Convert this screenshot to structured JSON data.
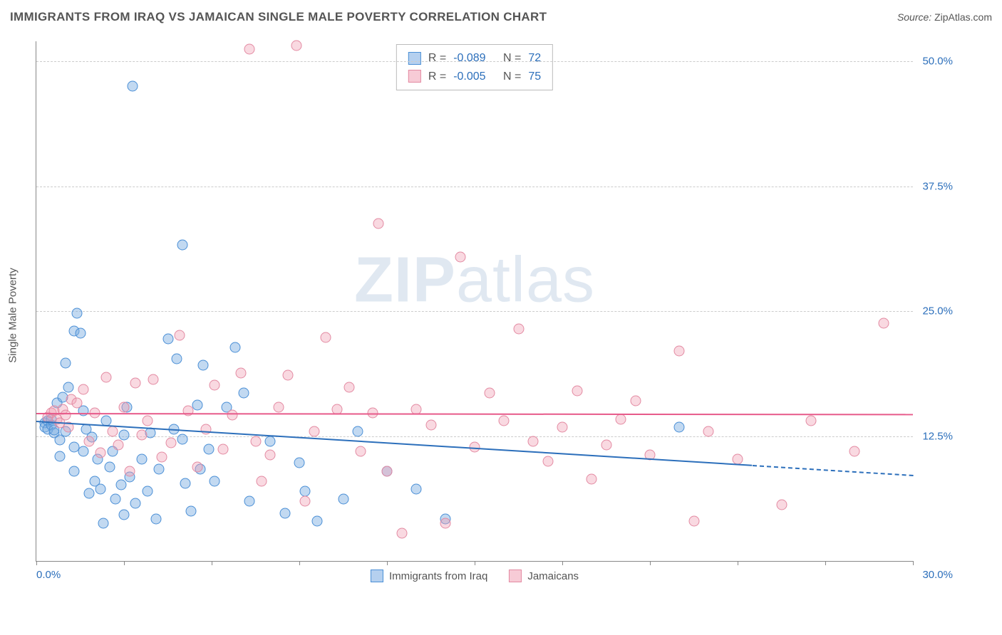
{
  "title": "IMMIGRANTS FROM IRAQ VS JAMAICAN SINGLE MALE POVERTY CORRELATION CHART",
  "source_label": "Source:",
  "source_value": "ZipAtlas.com",
  "watermark_zip": "ZIP",
  "watermark_atlas": "atlas",
  "ylabel": "Single Male Poverty",
  "chart": {
    "type": "scatter",
    "background_color": "#ffffff",
    "grid_color": "#cccccc",
    "axis_color": "#888888",
    "xlim": [
      0,
      30
    ],
    "ylim": [
      0,
      52
    ],
    "xtick_positions": [
      0,
      3,
      6,
      9,
      12,
      15,
      18,
      21,
      24,
      27,
      30
    ],
    "ytick_positions": [
      12.5,
      25.0,
      37.5,
      50.0
    ],
    "ytick_labels": [
      "12.5%",
      "25.0%",
      "37.5%",
      "50.0%"
    ],
    "xaxis_min_label": "0.0%",
    "xaxis_max_label": "30.0%",
    "tick_label_color": "#2c6fbb",
    "label_fontsize": 15,
    "title_fontsize": 17,
    "point_radius": 7.5
  },
  "stats": {
    "series1": {
      "r_label": "R =",
      "r_value": "-0.089",
      "n_label": "N =",
      "n_value": "72"
    },
    "series2": {
      "r_label": "R =",
      "r_value": "-0.005",
      "n_label": "N =",
      "n_value": "75"
    }
  },
  "legend": {
    "series1": "Immigrants from Iraq",
    "series2": "Jamaicans"
  },
  "series": [
    {
      "name": "Immigrants from Iraq",
      "color_fill": "rgba(120,170,225,0.45)",
      "color_stroke": "#4a8fd6",
      "regression": {
        "x1": 0,
        "y1": 14.0,
        "x2": 24.5,
        "y2": 9.6,
        "dashed_extend_x": 30,
        "dashed_extend_y": 8.6,
        "color": "#2c6fbb",
        "width": 2.5
      },
      "points": [
        [
          0.3,
          13.8
        ],
        [
          0.3,
          13.4
        ],
        [
          0.4,
          14.0
        ],
        [
          0.4,
          13.2
        ],
        [
          0.5,
          13.6
        ],
        [
          0.5,
          14.2
        ],
        [
          0.6,
          12.8
        ],
        [
          0.6,
          13.1
        ],
        [
          0.7,
          15.8
        ],
        [
          0.8,
          12.1
        ],
        [
          0.8,
          10.5
        ],
        [
          0.9,
          16.4
        ],
        [
          1.0,
          13.0
        ],
        [
          1.0,
          19.8
        ],
        [
          1.1,
          17.4
        ],
        [
          1.3,
          9.0
        ],
        [
          1.3,
          11.4
        ],
        [
          1.3,
          23.0
        ],
        [
          1.4,
          24.8
        ],
        [
          1.5,
          22.8
        ],
        [
          1.6,
          15.0
        ],
        [
          1.6,
          11.0
        ],
        [
          1.7,
          13.2
        ],
        [
          1.8,
          6.8
        ],
        [
          1.9,
          12.4
        ],
        [
          2.0,
          8.0
        ],
        [
          2.1,
          10.2
        ],
        [
          2.2,
          7.2
        ],
        [
          2.3,
          3.8
        ],
        [
          2.4,
          14.0
        ],
        [
          2.5,
          9.4
        ],
        [
          2.6,
          11.0
        ],
        [
          2.7,
          6.2
        ],
        [
          2.9,
          7.6
        ],
        [
          3.0,
          4.6
        ],
        [
          3.0,
          12.6
        ],
        [
          3.1,
          15.4
        ],
        [
          3.2,
          8.4
        ],
        [
          3.3,
          47.5
        ],
        [
          3.4,
          5.8
        ],
        [
          3.6,
          10.2
        ],
        [
          3.8,
          7.0
        ],
        [
          3.9,
          12.8
        ],
        [
          4.1,
          4.2
        ],
        [
          4.2,
          9.2
        ],
        [
          4.5,
          22.2
        ],
        [
          4.7,
          13.2
        ],
        [
          4.8,
          20.2
        ],
        [
          5.0,
          31.6
        ],
        [
          5.0,
          12.2
        ],
        [
          5.1,
          7.8
        ],
        [
          5.3,
          5.0
        ],
        [
          5.5,
          15.6
        ],
        [
          5.6,
          9.2
        ],
        [
          5.7,
          19.6
        ],
        [
          5.9,
          11.2
        ],
        [
          6.1,
          8.0
        ],
        [
          6.5,
          15.4
        ],
        [
          6.8,
          21.4
        ],
        [
          7.1,
          16.8
        ],
        [
          7.3,
          6.0
        ],
        [
          8.0,
          12.0
        ],
        [
          8.5,
          4.8
        ],
        [
          9.0,
          9.8
        ],
        [
          9.2,
          7.0
        ],
        [
          9.6,
          4.0
        ],
        [
          10.5,
          6.2
        ],
        [
          11.0,
          13.0
        ],
        [
          12.0,
          9.0
        ],
        [
          13.0,
          7.2
        ],
        [
          14.0,
          4.2
        ],
        [
          22.0,
          13.4
        ]
      ]
    },
    {
      "name": "Jamaicans",
      "color_fill": "rgba(240,160,180,0.40)",
      "color_stroke": "#e38aa2",
      "regression": {
        "x1": 0,
        "y1": 14.8,
        "x2": 30,
        "y2": 14.7,
        "color": "#e75a8a",
        "width": 2.5
      },
      "points": [
        [
          0.4,
          14.4
        ],
        [
          0.5,
          14.8
        ],
        [
          0.6,
          15.0
        ],
        [
          0.7,
          14.2
        ],
        [
          0.8,
          13.8
        ],
        [
          0.9,
          15.2
        ],
        [
          1.0,
          14.6
        ],
        [
          1.1,
          13.4
        ],
        [
          1.2,
          16.2
        ],
        [
          1.4,
          15.8
        ],
        [
          1.6,
          17.2
        ],
        [
          1.8,
          12.0
        ],
        [
          2.0,
          14.8
        ],
        [
          2.2,
          10.8
        ],
        [
          2.4,
          18.4
        ],
        [
          2.6,
          13.0
        ],
        [
          2.8,
          11.6
        ],
        [
          3.0,
          15.4
        ],
        [
          3.2,
          9.0
        ],
        [
          3.4,
          17.8
        ],
        [
          3.6,
          12.6
        ],
        [
          3.8,
          14.0
        ],
        [
          4.0,
          18.2
        ],
        [
          4.3,
          10.4
        ],
        [
          4.6,
          11.8
        ],
        [
          4.9,
          22.6
        ],
        [
          5.2,
          15.0
        ],
        [
          5.5,
          9.4
        ],
        [
          5.8,
          13.2
        ],
        [
          6.1,
          17.6
        ],
        [
          6.4,
          11.2
        ],
        [
          6.7,
          14.6
        ],
        [
          7.0,
          18.8
        ],
        [
          7.3,
          51.2
        ],
        [
          7.5,
          12.0
        ],
        [
          7.7,
          8.0
        ],
        [
          8.0,
          10.6
        ],
        [
          8.3,
          15.4
        ],
        [
          8.6,
          18.6
        ],
        [
          8.9,
          51.6
        ],
        [
          9.2,
          6.0
        ],
        [
          9.5,
          13.0
        ],
        [
          9.9,
          22.4
        ],
        [
          10.3,
          15.2
        ],
        [
          10.7,
          17.4
        ],
        [
          11.1,
          11.0
        ],
        [
          11.5,
          14.8
        ],
        [
          11.7,
          33.8
        ],
        [
          12.0,
          9.0
        ],
        [
          12.5,
          2.8
        ],
        [
          13.0,
          15.2
        ],
        [
          13.5,
          13.6
        ],
        [
          14.0,
          3.8
        ],
        [
          14.5,
          30.4
        ],
        [
          15.0,
          11.4
        ],
        [
          15.5,
          16.8
        ],
        [
          16.0,
          14.0
        ],
        [
          16.5,
          23.2
        ],
        [
          17.0,
          12.0
        ],
        [
          17.5,
          10.0
        ],
        [
          18.0,
          13.4
        ],
        [
          18.5,
          17.0
        ],
        [
          19.0,
          8.2
        ],
        [
          19.5,
          11.6
        ],
        [
          20.0,
          14.2
        ],
        [
          20.5,
          16.0
        ],
        [
          21.0,
          10.6
        ],
        [
          22.0,
          21.0
        ],
        [
          22.5,
          4.0
        ],
        [
          23.0,
          13.0
        ],
        [
          24.0,
          10.2
        ],
        [
          25.5,
          5.6
        ],
        [
          26.5,
          14.0
        ],
        [
          28.0,
          11.0
        ],
        [
          29.0,
          23.8
        ]
      ]
    }
  ]
}
